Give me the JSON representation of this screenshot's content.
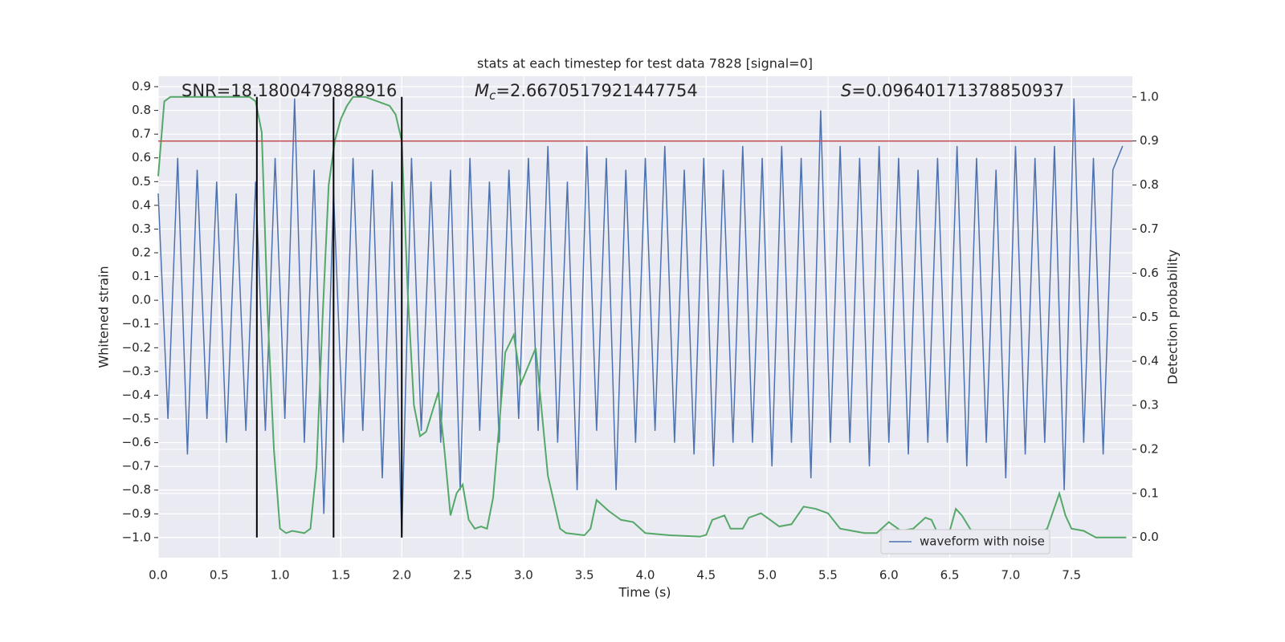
{
  "chart_data": {
    "type": "line",
    "title": "stats at each timestep for test data 7828 [signal=0]",
    "xlabel": "Time (s)",
    "ylabel": "Whitened strain",
    "y2label": "Detection probability",
    "annotations": [
      {
        "text": "SNR=18.1800479888916"
      },
      {
        "symbol": "M",
        "subscript": "c",
        "text": "=2.6670517921447754"
      },
      {
        "symbol": "S",
        "text": "=0.09640171378850937"
      }
    ],
    "xlim": [
      0,
      8
    ],
    "ylim": [
      -1.085,
      0.944
    ],
    "y2lim": [
      -0.046,
      1.047
    ],
    "xticks": [
      {
        "value": 0,
        "label": "0.0"
      },
      0.5,
      {
        "value": 1,
        "label": "1.0"
      },
      1.5,
      {
        "value": 2,
        "label": "2.0"
      },
      2.5,
      {
        "value": 3,
        "label": "3.0"
      },
      3.5,
      {
        "value": 4,
        "label": "4.0"
      },
      4.5,
      {
        "value": 5,
        "label": "5.0"
      },
      5.5,
      {
        "value": 6,
        "label": "6.0"
      },
      6.5,
      {
        "value": 7,
        "label": "7.0"
      },
      7.5
    ],
    "yticks": [
      {
        "value": -1,
        "label": "−1.0"
      },
      {
        "value": -0.9,
        "label": "−0.9"
      },
      {
        "value": -0.8,
        "label": "−0.8"
      },
      {
        "value": -0.7,
        "label": "−0.7"
      },
      {
        "value": -0.6,
        "label": "−0.6"
      },
      {
        "value": -0.5,
        "label": "−0.5"
      },
      {
        "value": -0.4,
        "label": "−0.4"
      },
      {
        "value": -0.3,
        "label": "−0.3"
      },
      {
        "value": -0.2,
        "label": "−0.2"
      },
      {
        "value": -0.1,
        "label": "−0.1"
      },
      {
        "value": 0,
        "label": "0.0"
      },
      0.1,
      0.2,
      0.3,
      0.4,
      0.5,
      0.6,
      0.7,
      0.8,
      0.9
    ],
    "y2ticks": [
      {
        "value": 0,
        "label": "0.0"
      },
      0.1,
      0.2,
      0.3,
      0.4,
      0.5,
      0.6,
      0.7,
      0.8,
      0.9,
      {
        "value": 1,
        "label": "1.0"
      }
    ],
    "grid": true,
    "legend": "lower right",
    "threshold": {
      "value": 0.9,
      "axis": "y2",
      "color": "#c44e52"
    },
    "vlines": {
      "x": [
        0.81,
        1.44,
        2.0
      ],
      "span": [
        0,
        1
      ],
      "axis": "y2",
      "color": "#000000"
    },
    "series": [
      {
        "name": "waveform with noise",
        "color": "#4c72b0",
        "x": [
          0,
          0.08,
          0.16,
          0.24,
          0.32,
          0.4,
          0.48,
          0.56,
          0.64,
          0.72,
          0.8,
          0.88,
          0.96,
          1.04,
          1.12,
          1.2,
          1.28,
          1.36,
          1.44,
          1.52,
          1.6,
          1.68,
          1.76,
          1.84,
          1.92,
          2,
          2.08,
          2.16,
          2.24,
          2.32,
          2.4,
          2.48,
          2.56,
          2.64,
          2.72,
          2.8,
          2.88,
          2.96,
          3.04,
          3.12,
          3.2,
          3.28,
          3.36,
          3.44,
          3.52,
          3.6,
          3.68,
          3.76,
          3.84,
          3.92,
          4,
          4.08,
          4.16,
          4.24,
          4.32,
          4.4,
          4.48,
          4.56,
          4.64,
          4.72,
          4.8,
          4.88,
          4.96,
          5.04,
          5.12,
          5.2,
          5.28,
          5.36,
          5.44,
          5.52,
          5.6,
          5.68,
          5.76,
          5.84,
          5.92,
          6,
          6.08,
          6.16,
          6.24,
          6.32,
          6.4,
          6.48,
          6.56,
          6.64,
          6.72,
          6.8,
          6.88,
          6.96,
          7.04,
          7.12,
          7.2,
          7.28,
          7.36,
          7.44,
          7.52,
          7.6,
          7.68,
          7.76,
          7.84,
          7.92
        ],
        "values": [
          0.45,
          -0.5,
          0.6,
          -0.65,
          0.55,
          -0.5,
          0.5,
          -0.6,
          0.45,
          -0.55,
          0.5,
          -0.55,
          0.6,
          -0.5,
          0.85,
          -0.6,
          0.55,
          -0.9,
          0.45,
          -0.6,
          0.6,
          -0.55,
          0.55,
          -0.75,
          0.5,
          -1.0,
          0.6,
          -0.55,
          0.5,
          -0.6,
          0.55,
          -0.8,
          0.6,
          -0.55,
          0.5,
          -0.6,
          0.55,
          -0.5,
          0.6,
          -0.55,
          0.65,
          -0.6,
          0.5,
          -0.8,
          0.65,
          -0.55,
          0.6,
          -0.8,
          0.55,
          -0.6,
          0.6,
          -0.55,
          0.65,
          -0.6,
          0.55,
          -0.65,
          0.6,
          -0.7,
          0.55,
          -0.6,
          0.65,
          -0.6,
          0.6,
          -0.7,
          0.65,
          -0.6,
          0.6,
          -0.75,
          0.8,
          -0.6,
          0.65,
          -0.6,
          0.6,
          -0.7,
          0.65,
          -0.6,
          0.6,
          -0.65,
          0.55,
          -0.6,
          0.6,
          -0.6,
          0.65,
          -0.7,
          0.6,
          -0.6,
          0.55,
          -0.75,
          0.65,
          -0.65,
          0.6,
          -0.6,
          0.65,
          -0.8,
          0.85,
          -0.6,
          0.6,
          -0.65,
          0.55,
          0.65
        ]
      },
      {
        "color": "#55a868",
        "axis": "y2",
        "x": [
          0,
          0.05,
          0.1,
          0.3,
          0.5,
          0.75,
          0.8,
          0.85,
          0.9,
          0.95,
          1.0,
          1.05,
          1.1,
          1.2,
          1.25,
          1.3,
          1.35,
          1.4,
          1.45,
          1.5,
          1.55,
          1.6,
          1.7,
          1.8,
          1.9,
          1.95,
          2.0,
          2.05,
          2.1,
          2.15,
          2.2,
          2.3,
          2.35,
          2.4,
          2.45,
          2.5,
          2.55,
          2.6,
          2.65,
          2.7,
          2.75,
          2.85,
          2.92,
          2.98,
          3.1,
          3.2,
          3.3,
          3.35,
          3.5,
          3.55,
          3.6,
          3.7,
          3.8,
          3.9,
          4.0,
          4.2,
          4.45,
          4.5,
          4.55,
          4.65,
          4.7,
          4.8,
          4.85,
          4.95,
          5.0,
          5.1,
          5.2,
          5.3,
          5.4,
          5.5,
          5.6,
          5.7,
          5.8,
          5.9,
          6.0,
          6.1,
          6.2,
          6.3,
          6.35,
          6.4,
          6.5,
          6.55,
          6.6,
          6.7,
          6.8,
          7.0,
          7.2,
          7.3,
          7.4,
          7.45,
          7.5,
          7.6,
          7.7,
          7.9,
          7.95
        ],
        "values": [
          0.82,
          0.99,
          1.0,
          1.0,
          1.0,
          1.0,
          0.99,
          0.92,
          0.5,
          0.2,
          0.02,
          0.01,
          0.015,
          0.01,
          0.02,
          0.16,
          0.5,
          0.8,
          0.9,
          0.95,
          0.98,
          1.0,
          1.0,
          0.99,
          0.98,
          0.96,
          0.9,
          0.55,
          0.3,
          0.23,
          0.24,
          0.33,
          0.2,
          0.05,
          0.1,
          0.12,
          0.04,
          0.02,
          0.025,
          0.02,
          0.09,
          0.42,
          0.46,
          0.35,
          0.43,
          0.14,
          0.02,
          0.01,
          0.005,
          0.02,
          0.085,
          0.06,
          0.04,
          0.035,
          0.01,
          0.005,
          0.002,
          0.006,
          0.04,
          0.05,
          0.02,
          0.02,
          0.045,
          0.055,
          0.045,
          0.025,
          0.03,
          0.07,
          0.065,
          0.055,
          0.02,
          0.015,
          0.01,
          0.01,
          0.035,
          0.015,
          0.02,
          0.045,
          0.04,
          0.01,
          0.015,
          0.065,
          0.05,
          0.005,
          0.0,
          -0.001,
          0.005,
          0.02,
          0.1,
          0.05,
          0.02,
          0.015,
          0.0,
          0.0,
          0.0
        ]
      }
    ]
  }
}
